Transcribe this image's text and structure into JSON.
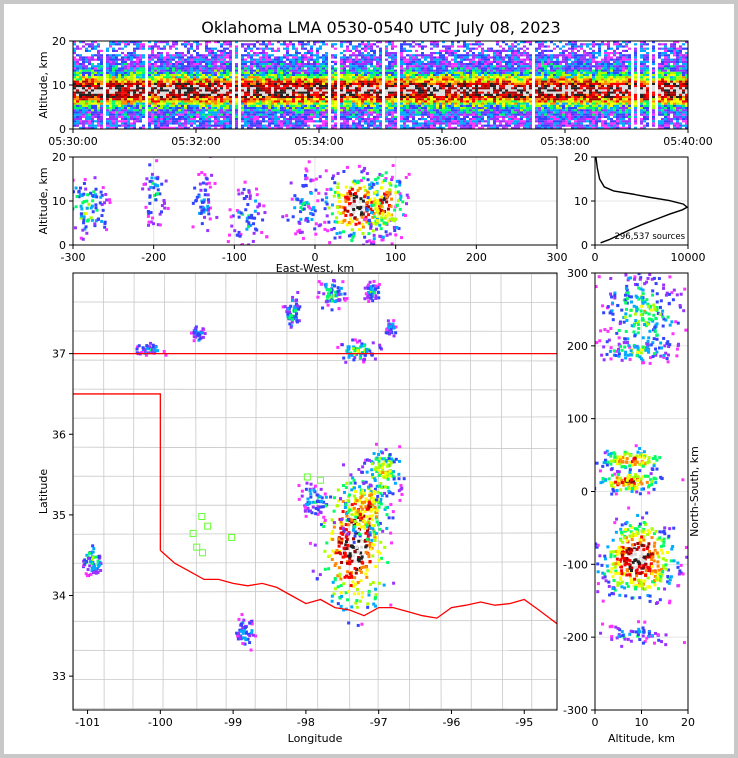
{
  "chart_data": [
    {
      "id": "time_height",
      "type": "heatmap",
      "title": "Oklahoma LMA 0530-0540 UTC July 08, 2023",
      "xlabel": "",
      "ylabel": "Altitude, km",
      "x_tick_labels": [
        "05:30:00",
        "05:32:00",
        "05:34:00",
        "05:36:00",
        "05:38:00",
        "05:40:00"
      ],
      "x_ticks_minutes": [
        0,
        2,
        4,
        6,
        8,
        10
      ],
      "xlim_minutes": [
        0,
        10
      ],
      "ylim": [
        0,
        20
      ],
      "y_ticks": [
        0,
        10,
        20
      ],
      "description_of_density": "Sources at all times; densest band 5-13 km altitude"
    },
    {
      "id": "ew_altitude",
      "type": "heatmap",
      "xlabel": "East-West, km",
      "ylabel": "Altitude, km",
      "xlim": [
        -300,
        300
      ],
      "x_ticks": [
        -300,
        -200,
        -100,
        0,
        100,
        200,
        300
      ],
      "ylim": [
        0,
        20
      ],
      "y_ticks": [
        0,
        10,
        20
      ],
      "clusters": [
        {
          "x": -285,
          "width": 25,
          "alt": 9,
          "intensity": 0.45
        },
        {
          "x": -200,
          "width": 12,
          "alt": 12,
          "intensity": 0.35
        },
        {
          "x": -140,
          "width": 12,
          "alt": 11,
          "intensity": 0.3
        },
        {
          "x": -85,
          "width": 18,
          "alt": 7,
          "intensity": 0.35
        },
        {
          "x": -15,
          "width": 20,
          "alt": 10,
          "intensity": 0.35
        },
        {
          "x": 50,
          "width": 35,
          "alt": 9,
          "intensity": 1.0
        },
        {
          "x": 85,
          "width": 20,
          "alt": 10,
          "intensity": 0.85
        }
      ]
    },
    {
      "id": "altitude_histogram",
      "type": "line",
      "xlim": [
        0,
        10000
      ],
      "x_ticks": [
        0,
        10000
      ],
      "ylim": [
        0,
        20
      ],
      "y_ticks": [
        0,
        10,
        20
      ],
      "annotation": "296,537 sources",
      "points": [
        [
          600,
          0.5
        ],
        [
          1500,
          1.2
        ],
        [
          2800,
          2.5
        ],
        [
          3800,
          3.5
        ],
        [
          5000,
          4.6
        ],
        [
          6500,
          5.8
        ],
        [
          8000,
          7.0
        ],
        [
          9400,
          8.0
        ],
        [
          9900,
          8.6
        ],
        [
          9500,
          9.3
        ],
        [
          8000,
          10.1
        ],
        [
          6000,
          10.8
        ],
        [
          4000,
          11.6
        ],
        [
          2000,
          12.3
        ],
        [
          1000,
          13.2
        ],
        [
          500,
          15.0
        ],
        [
          250,
          17.5
        ],
        [
          100,
          20.0
        ]
      ]
    },
    {
      "id": "plan_view_map",
      "type": "heatmap",
      "xlabel": "Longitude",
      "ylabel": "Latitude",
      "xlim": [
        -101.2,
        -94.55
      ],
      "x_ticks": [
        -101,
        -100,
        -99,
        -98,
        -97,
        -96,
        -95
      ],
      "ylim": [
        32.58,
        38.0
      ],
      "y_ticks": [
        33,
        34,
        35,
        36,
        37
      ],
      "ns_km_axis": {
        "ylim": [
          -300,
          300
        ],
        "ticks": [
          -300,
          -200,
          -100,
          0,
          100,
          200,
          300
        ]
      },
      "state_border_color": "#ff0000",
      "county_line_color": "#c8c8c8",
      "station_color": "#66ff33",
      "stations": [
        [
          -97.98,
          35.47
        ],
        [
          -97.8,
          35.43
        ],
        [
          -99.43,
          34.98
        ],
        [
          -99.35,
          34.86
        ],
        [
          -99.55,
          34.77
        ],
        [
          -99.5,
          34.6
        ],
        [
          -99.42,
          34.53
        ],
        [
          -99.02,
          34.72
        ]
      ],
      "clusters": [
        {
          "lon": -97.35,
          "lat": 34.65,
          "w": 0.45,
          "h": 0.85,
          "intensity": 1.0
        },
        {
          "lon": -97.2,
          "lat": 35.1,
          "w": 0.35,
          "h": 0.4,
          "intensity": 0.75
        },
        {
          "lon": -96.95,
          "lat": 35.55,
          "w": 0.25,
          "h": 0.3,
          "intensity": 0.6
        },
        {
          "lon": -97.9,
          "lat": 35.2,
          "w": 0.2,
          "h": 0.2,
          "intensity": 0.35
        },
        {
          "lon": -97.65,
          "lat": 37.75,
          "w": 0.2,
          "h": 0.2,
          "intensity": 0.4
        },
        {
          "lon": -97.1,
          "lat": 37.78,
          "w": 0.1,
          "h": 0.12,
          "intensity": 0.4
        },
        {
          "lon": -98.2,
          "lat": 37.53,
          "w": 0.12,
          "h": 0.2,
          "intensity": 0.35
        },
        {
          "lon": -96.85,
          "lat": 37.35,
          "w": 0.08,
          "h": 0.1,
          "intensity": 0.3
        },
        {
          "lon": -97.3,
          "lat": 37.05,
          "w": 0.25,
          "h": 0.12,
          "intensity": 0.5
        },
        {
          "lon": -100.18,
          "lat": 37.07,
          "w": 0.18,
          "h": 0.08,
          "intensity": 0.35
        },
        {
          "lon": -99.5,
          "lat": 37.26,
          "w": 0.1,
          "h": 0.1,
          "intensity": 0.3
        },
        {
          "lon": -100.95,
          "lat": 34.45,
          "w": 0.15,
          "h": 0.18,
          "intensity": 0.4
        },
        {
          "lon": -98.85,
          "lat": 33.55,
          "w": 0.12,
          "h": 0.18,
          "intensity": 0.35
        }
      ]
    },
    {
      "id": "altitude_ns",
      "type": "heatmap",
      "xlabel": "Altitude, km",
      "ylabel": "North-South, km",
      "xlim": [
        0,
        20
      ],
      "x_ticks": [
        0,
        10,
        20
      ],
      "ylim": [
        -300,
        300
      ],
      "y_ticks": [
        -300,
        -200,
        -100,
        0,
        100,
        200,
        300
      ],
      "clusters": [
        {
          "ns": 245,
          "h": 60,
          "alt": 10,
          "intensity": 0.5
        },
        {
          "ns": 195,
          "h": 15,
          "alt": 9,
          "intensity": 0.45
        },
        {
          "ns": 45,
          "h": 15,
          "alt": 8,
          "intensity": 0.75
        },
        {
          "ns": 15,
          "h": 15,
          "alt": 7,
          "intensity": 0.8
        },
        {
          "ns": -90,
          "h": 55,
          "alt": 9,
          "intensity": 1.0
        },
        {
          "ns": -195,
          "h": 15,
          "alt": 8,
          "intensity": 0.3
        }
      ]
    }
  ]
}
